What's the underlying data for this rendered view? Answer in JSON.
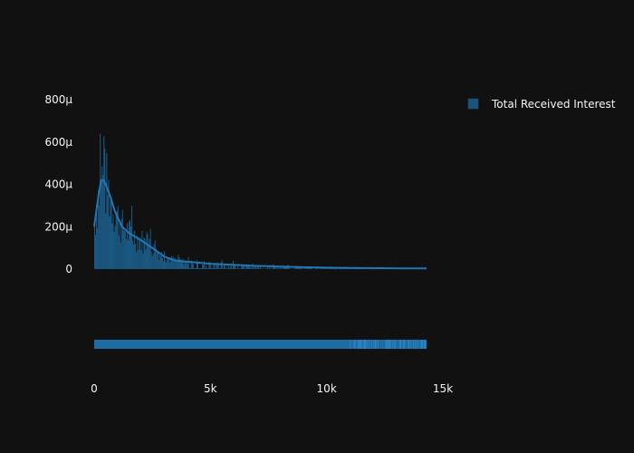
{
  "chart_data": {
    "type": "histogram",
    "title": "",
    "xlabel": "",
    "ylabel": "",
    "legend": {
      "position": "top-right",
      "entries": [
        "Total Received Interest"
      ]
    },
    "series": [
      {
        "name": "Total Received Interest",
        "color": "#1f77b4",
        "kde_line": true,
        "rug_plot": true
      }
    ],
    "x_axis": {
      "range": [
        0,
        14300
      ],
      "ticks": [
        0,
        5000,
        10000,
        15000
      ],
      "tick_labels": [
        "0",
        "5k",
        "10k",
        "15k"
      ]
    },
    "y_axis": {
      "range": [
        0,
        0.0008
      ],
      "ticks": [
        0,
        0.0002,
        0.0004,
        0.0006,
        0.0008
      ],
      "tick_labels": [
        "0",
        "200μ",
        "400μ",
        "600μ",
        "800μ"
      ]
    },
    "density_curve": {
      "x": [
        0,
        100,
        200,
        300,
        400,
        500,
        700,
        900,
        1200,
        1500,
        1800,
        2100,
        2500,
        3000,
        3500,
        4000,
        5000,
        6000,
        7000,
        8000,
        9000,
        10000,
        11000,
        12000,
        13000,
        14000,
        14300
      ],
      "y": [
        0.0002,
        0.00028,
        0.00036,
        0.00042,
        0.00042,
        0.0004,
        0.00034,
        0.00027,
        0.0002,
        0.00017,
        0.00015,
        0.00013,
        0.0001,
        6e-05,
        4e-05,
        3.5e-05,
        2.5e-05,
        2e-05,
        1.5e-05,
        1.2e-05,
        9e-06,
        7e-06,
        5.5e-06,
        4.5e-06,
        3.5e-06,
        3e-06,
        3e-06
      ]
    }
  }
}
